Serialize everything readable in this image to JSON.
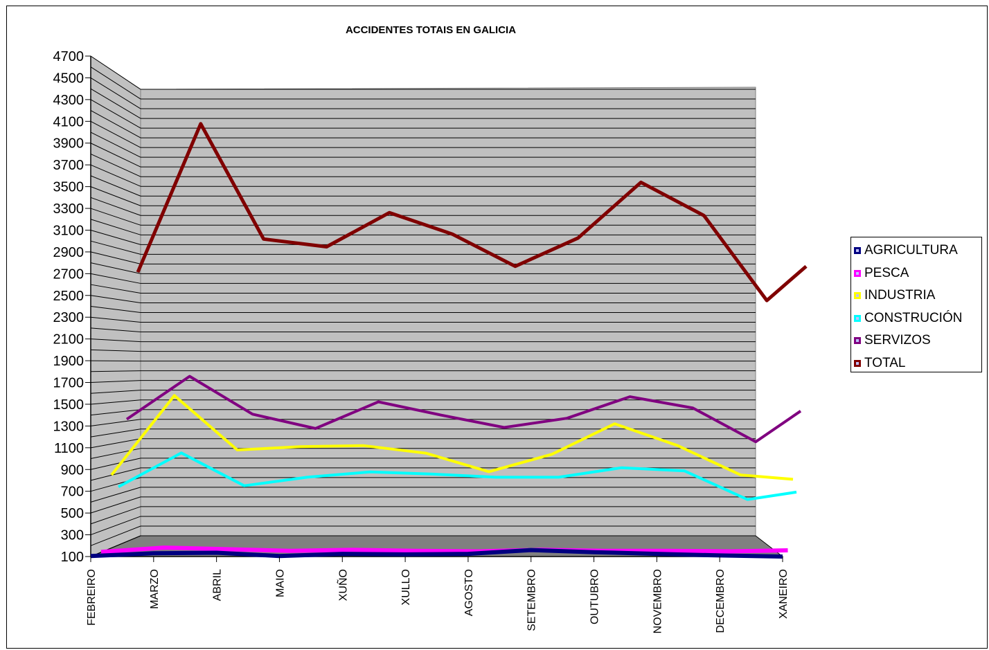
{
  "chart_data": {
    "type": "line",
    "title": "ACCIDENTES TOTAIS EN GALICIA",
    "xlabel": "",
    "ylabel": "",
    "ylim": [
      100,
      4700
    ],
    "y_ticks": [
      "100",
      "300",
      "500",
      "700",
      "900",
      "1100",
      "1300",
      "1500",
      "1700",
      "1900",
      "2100",
      "2300",
      "2500",
      "2700",
      "2900",
      "3100",
      "3300",
      "3500",
      "3700",
      "3900",
      "4100",
      "4300",
      "4500",
      "4700"
    ],
    "categories": [
      "FEBREIRO",
      "MARZO",
      "ABRIL",
      "MAIO",
      "XUÑO",
      "XULLO",
      "AGOSTO",
      "SETEMBRO",
      "OUTUBRO",
      "NOVEMBRO",
      "DECEMBRO",
      "XANEIRO"
    ],
    "series": [
      {
        "name": "AGRICULTURA",
        "color": "#000080",
        "values": [
          105,
          130,
          135,
          105,
          125,
          120,
          125,
          160,
          140,
          125,
          110,
          100
        ]
      },
      {
        "name": "PESCA",
        "color": "#FF00FF",
        "values": [
          120,
          160,
          145,
          130,
          140,
          130,
          125,
          140,
          130,
          130,
          125,
          135
        ]
      },
      {
        "name": "INDUSTRIA",
        "color": "#FFFF00",
        "values": [
          850,
          1580,
          1080,
          1110,
          1120,
          1050,
          880,
          1040,
          1320,
          1120,
          850,
          810
        ]
      },
      {
        "name": "CONSTRUCIÓN",
        "color": "#00FFFF",
        "values": [
          710,
          1030,
          720,
          800,
          850,
          830,
          800,
          800,
          890,
          860,
          590,
          660
        ]
      },
      {
        "name": "SERVIZOS",
        "color": "#800080",
        "values": [
          1330,
          1750,
          1380,
          1240,
          1500,
          1370,
          1250,
          1340,
          1550,
          1440,
          1110,
          1410
        ]
      },
      {
        "name": "TOTAL",
        "color": "#800000",
        "values": [
          2810,
          4330,
          3150,
          3070,
          3420,
          3200,
          2870,
          3160,
          3730,
          3390,
          2520,
          2870
        ]
      }
    ],
    "grid": true,
    "legend_position": "right"
  },
  "legend": {
    "items": [
      {
        "label": "AGRICULTURA",
        "color": "#000080"
      },
      {
        "label": "PESCA",
        "color": "#FF00FF"
      },
      {
        "label": "INDUSTRIA",
        "color": "#FFFF00"
      },
      {
        "label": "CONSTRUCIÓN",
        "color": "#00FFFF"
      },
      {
        "label": "SERVIZOS",
        "color": "#800080"
      },
      {
        "label": "TOTAL",
        "color": "#800000"
      }
    ]
  },
  "colors": {
    "back_wall": "#C0C0C0",
    "side_wall": "#C0C0C0",
    "floor": "#808080",
    "gridline": "#000000"
  }
}
